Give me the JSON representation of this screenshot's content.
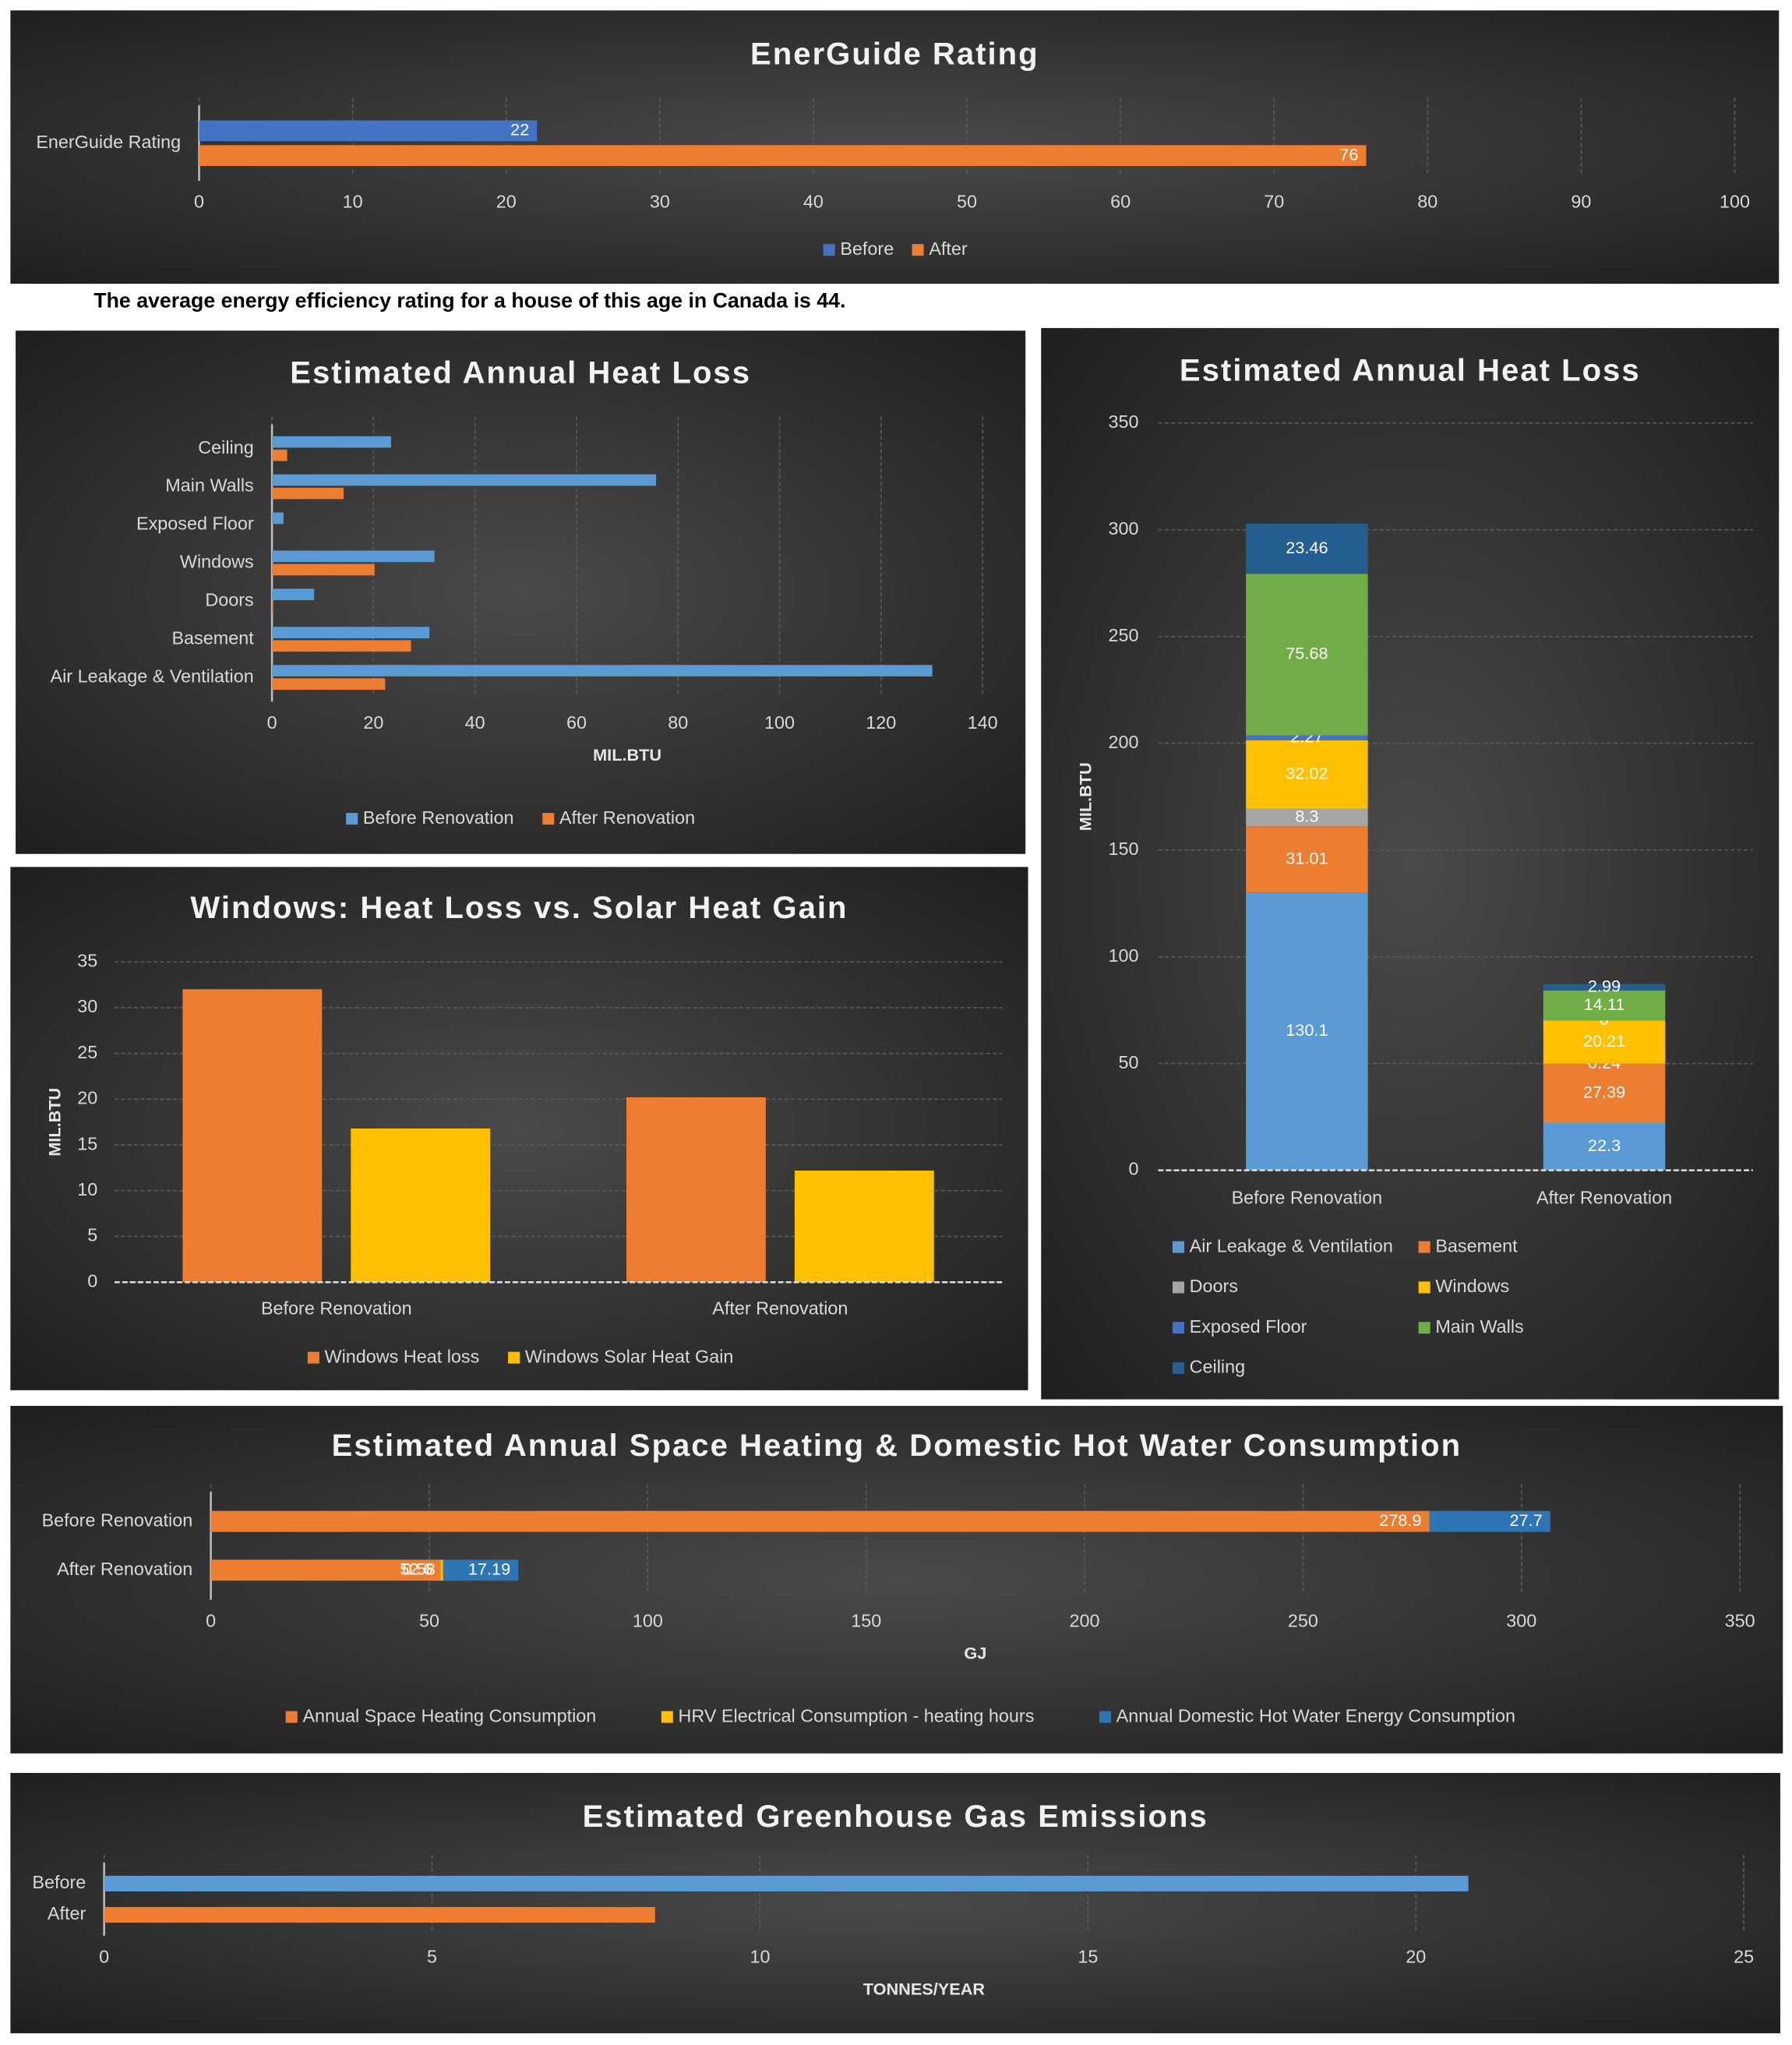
{
  "chart_data": [
    {
      "type": "bar",
      "orientation": "horizontal",
      "title": "EnerGuide Rating",
      "categories": [
        "EnerGuide Rating"
      ],
      "series": [
        {
          "name": "Before",
          "color": "#4472c4",
          "values": [
            22
          ]
        },
        {
          "name": "After",
          "color": "#ed7d31",
          "values": [
            76
          ]
        }
      ],
      "xlim": [
        0,
        100
      ],
      "xticks": [
        0,
        10,
        20,
        30,
        40,
        50,
        60,
        70,
        80,
        90,
        100
      ],
      "grid": true,
      "data_labels": true,
      "legend": "bottom"
    },
    {
      "type": "bar",
      "orientation": "horizontal",
      "title": "Estimated Annual Heat Loss",
      "categories": [
        "Ceiling",
        "Main Walls",
        "Exposed Floor",
        "Windows",
        "Doors",
        "Basement",
        "Air Leakage & Ventilation"
      ],
      "series": [
        {
          "name": "Before Renovation",
          "color": "#5b9bd5",
          "values": [
            23.46,
            75.68,
            2.27,
            32.02,
            8.3,
            31.01,
            130.1
          ]
        },
        {
          "name": "After Renovation",
          "color": "#ed7d31",
          "values": [
            2.99,
            14.11,
            0,
            20.21,
            0.24,
            27.39,
            22.3
          ]
        }
      ],
      "xlabel": "MIL.BTU",
      "xlim": [
        0,
        140
      ],
      "xticks": [
        0,
        20,
        40,
        60,
        80,
        100,
        120,
        140
      ],
      "grid": true,
      "data_labels": false,
      "legend": "bottom"
    },
    {
      "type": "bar",
      "orientation": "vertical",
      "title": "Windows: Heat Loss vs. Solar Heat Gain",
      "categories": [
        "Before Renovation",
        "After Renovation"
      ],
      "series": [
        {
          "name": "Windows Heat loss",
          "color": "#ed7d31",
          "values": [
            32.02,
            20.21
          ]
        },
        {
          "name": "Windows Solar Heat Gain",
          "color": "#ffc000",
          "values": [
            16.8,
            12.2
          ]
        }
      ],
      "ylabel": "MIL.BTU",
      "ylim": [
        0,
        35
      ],
      "yticks": [
        0,
        5,
        10,
        15,
        20,
        25,
        30,
        35
      ],
      "grid": true,
      "data_labels": false,
      "legend": "bottom"
    },
    {
      "type": "bar",
      "orientation": "vertical",
      "stacked": true,
      "title": "Estimated Annual Heat Loss",
      "categories": [
        "Before Renovation",
        "After Renovation"
      ],
      "series": [
        {
          "name": "Air Leakage & Ventilation",
          "color": "#5b9bd5",
          "values": [
            130.1,
            22.3
          ]
        },
        {
          "name": "Basement",
          "color": "#ed7d31",
          "values": [
            31.01,
            27.39
          ]
        },
        {
          "name": "Doors",
          "color": "#a5a5a5",
          "values": [
            8.3,
            0.24
          ]
        },
        {
          "name": "Windows",
          "color": "#ffc000",
          "values": [
            32.02,
            20.21
          ]
        },
        {
          "name": "Exposed Floor",
          "color": "#4472c4",
          "values": [
            2.27,
            0
          ]
        },
        {
          "name": "Main Walls",
          "color": "#70ad47",
          "values": [
            75.68,
            14.11
          ]
        },
        {
          "name": "Ceiling",
          "color": "#255e91",
          "values": [
            23.46,
            2.99
          ]
        }
      ],
      "ylabel": "MIL.BTU",
      "ylim": [
        0,
        350
      ],
      "yticks": [
        0,
        50,
        100,
        150,
        200,
        250,
        300,
        350
      ],
      "grid": true,
      "data_labels": true,
      "legend": "bottom"
    },
    {
      "type": "bar",
      "orientation": "horizontal",
      "stacked": true,
      "title": "Estimated Annual Space Heating & Domestic Hot Water Consumption",
      "categories": [
        "Before Renovation",
        "After Renovation"
      ],
      "series": [
        {
          "name": "Annual Space Heating Consumption",
          "color": "#ed7d31",
          "values": [
            278.9,
            52.6
          ]
        },
        {
          "name": "HRV Electrical Consumption - heating hours",
          "color": "#ffc000",
          "values": [
            null,
            0.58
          ]
        },
        {
          "name": "Annual Domestic Hot Water Energy Consumption",
          "color": "#2e75b6",
          "values": [
            27.7,
            17.19
          ]
        }
      ],
      "xlabel": "GJ",
      "xlim": [
        0,
        350
      ],
      "xticks": [
        0,
        50,
        100,
        150,
        200,
        250,
        300,
        350
      ],
      "grid": true,
      "data_labels": true,
      "legend": "bottom"
    },
    {
      "type": "bar",
      "orientation": "horizontal",
      "title": "Estimated Greenhouse Gas Emissions",
      "categories": [
        "Before",
        "After"
      ],
      "values": [
        20.8,
        8.4
      ],
      "colors": [
        "#5b9bd5",
        "#ed7d31"
      ],
      "xlabel": "TONNES/YEAR",
      "xlim": [
        0,
        25
      ],
      "xticks": [
        0,
        5,
        10,
        15,
        20,
        25
      ],
      "grid": true,
      "data_labels": false
    }
  ],
  "note": "The average energy efficiency rating for a house of this age in Canada is 44."
}
